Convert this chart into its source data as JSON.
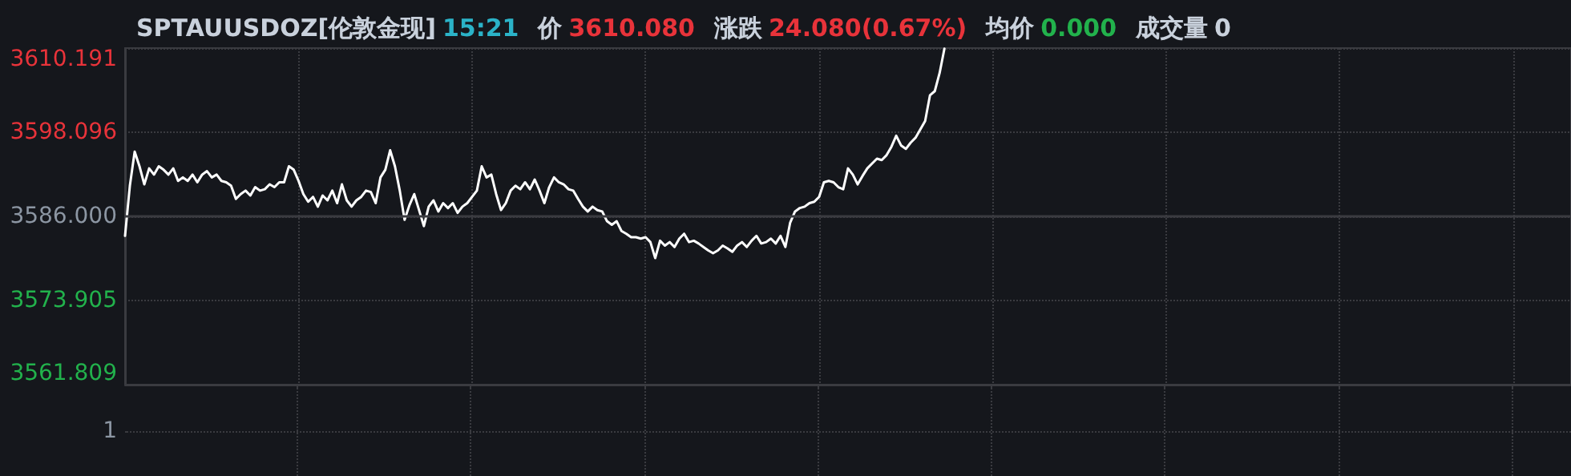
{
  "chart_data": {
    "type": "line",
    "title": "SPTAUUSDOZ[伦敦金现]",
    "annotations": [
      "15:21",
      "价",
      "3610.080",
      "涨跌",
      "24.080(0.67%)",
      "均价",
      "0.000",
      "成交量",
      "0",
      "1"
    ],
    "categories": [
      null,
      null,
      null,
      null,
      null,
      null,
      null,
      null,
      null,
      null,
      null,
      null,
      null,
      null,
      null,
      null,
      null,
      null,
      null,
      null,
      null,
      null,
      null,
      null,
      null,
      null,
      null,
      null,
      null,
      null,
      null,
      null,
      null,
      null,
      null,
      null,
      null,
      null,
      null,
      null,
      null,
      null,
      null,
      null,
      null,
      null,
      null,
      null,
      null,
      null,
      null,
      null,
      null,
      null,
      null,
      null,
      null,
      null,
      null,
      null,
      null,
      null,
      null,
      null,
      null,
      null,
      null,
      null,
      null,
      null,
      null,
      null,
      null,
      null,
      null,
      null,
      null,
      null,
      null,
      null,
      null,
      null,
      null,
      null,
      null,
      null,
      null,
      null,
      null,
      null,
      null,
      null,
      null,
      null,
      null,
      null,
      null,
      null,
      null,
      null,
      null,
      null,
      null,
      null,
      null,
      null,
      null,
      null,
      null,
      null,
      null,
      null,
      null,
      null,
      null,
      null,
      null,
      null,
      null,
      null,
      null,
      null,
      null,
      null,
      null,
      null,
      null,
      null,
      null,
      null,
      null,
      null,
      null,
      null,
      null,
      null,
      null,
      null,
      null,
      null,
      null,
      null,
      null,
      null,
      null,
      null,
      null,
      null,
      null,
      null,
      null,
      null,
      null,
      null,
      null,
      null,
      null,
      null,
      null,
      null,
      null,
      null,
      null,
      null,
      null,
      null,
      null,
      null,
      null,
      null,
      null,
      null,
      null,
      null,
      null,
      null,
      null,
      null,
      null,
      null,
      null,
      null,
      null,
      null,
      null,
      null,
      null,
      null,
      null,
      null,
      null,
      null,
      null,
      null,
      null,
      null,
      null,
      null,
      null,
      null,
      null,
      null,
      null,
      null,
      null,
      null,
      null,
      null,
      null,
      null,
      null,
      null,
      null,
      null,
      null,
      null,
      null,
      null,
      null,
      null,
      null,
      null,
      null,
      null,
      null,
      null,
      null,
      null,
      null,
      null,
      null,
      null,
      null,
      null,
      null,
      null,
      null,
      null,
      null,
      null,
      null,
      null,
      null,
      null,
      null,
      null,
      null,
      null,
      null,
      null,
      null,
      null,
      null,
      null,
      null,
      null,
      null,
      null,
      null,
      null,
      null,
      null,
      null,
      null,
      null,
      null,
      null,
      null,
      null,
      null,
      null,
      null,
      null,
      null,
      null,
      null,
      null,
      null,
      null,
      null,
      null,
      null,
      null,
      null,
      null,
      null,
      null,
      null,
      null,
      null,
      null,
      null,
      null,
      null,
      null,
      null,
      null,
      null,
      null,
      null,
      null
    ],
    "series": [
      {
        "color": "#ffffff",
        "values": [
          3583.2,
          3590.4,
          3595.3,
          3593.2,
          3590.6,
          3592.9,
          3592.0,
          3593.2,
          3592.7,
          3592.0,
          3592.9,
          3591.1,
          3591.6,
          3591.1,
          3592.0,
          3590.9,
          3592.0,
          3592.5,
          3591.6,
          3592.0,
          3591.1,
          3590.9,
          3590.4,
          3588.5,
          3589.2,
          3589.7,
          3589.0,
          3590.2,
          3589.7,
          3589.9,
          3590.6,
          3590.2,
          3590.9,
          3590.9,
          3593.2,
          3592.7,
          3591.1,
          3589.2,
          3588.1,
          3588.8,
          3587.4,
          3589.0,
          3588.3,
          3589.7,
          3587.9,
          3590.6,
          3588.3,
          3587.4,
          3588.3,
          3588.8,
          3589.7,
          3589.5,
          3587.9,
          3591.6,
          3592.7,
          3595.5,
          3593.2,
          3589.7,
          3585.5,
          3587.6,
          3589.2,
          3586.9,
          3584.6,
          3587.4,
          3588.3,
          3586.7,
          3587.9,
          3587.2,
          3587.9,
          3586.5,
          3587.4,
          3587.9,
          3588.8,
          3589.7,
          3593.2,
          3591.6,
          3592.0,
          3589.2,
          3586.9,
          3587.9,
          3589.7,
          3590.4,
          3589.9,
          3590.9,
          3589.9,
          3591.3,
          3589.7,
          3587.9,
          3590.2,
          3591.6,
          3590.9,
          3590.6,
          3589.9,
          3589.7,
          3588.5,
          3587.4,
          3586.7,
          3587.4,
          3586.9,
          3586.7,
          3585.3,
          3584.8,
          3585.3,
          3583.9,
          3583.5,
          3583.0,
          3583.0,
          3582.8,
          3583.0,
          3582.3,
          3580.0,
          3582.5,
          3581.8,
          3582.3,
          3581.6,
          3582.8,
          3583.5,
          3582.3,
          3582.5,
          3582.1,
          3581.6,
          3581.1,
          3580.7,
          3581.1,
          3581.8,
          3581.4,
          3580.9,
          3581.8,
          3582.3,
          3581.6,
          3582.5,
          3583.2,
          3582.1,
          3582.3,
          3582.8,
          3582.1,
          3583.2,
          3581.6,
          3585.1,
          3586.7,
          3587.2,
          3587.4,
          3587.9,
          3588.1,
          3588.8,
          3590.9,
          3591.1,
          3590.9,
          3590.2,
          3589.9,
          3592.9,
          3592.0,
          3590.6,
          3591.8,
          3592.9,
          3593.6,
          3594.3,
          3594.1,
          3594.8,
          3596.0,
          3597.6,
          3596.2,
          3595.7,
          3596.6,
          3597.3,
          3598.5,
          3599.7,
          3603.4,
          3604.0,
          3606.6,
          3610.1,
          null,
          null,
          null,
          null,
          null,
          null,
          null,
          null,
          null,
          null,
          null,
          null,
          null,
          null,
          null,
          null,
          null,
          null,
          null,
          null,
          null,
          null,
          null,
          null,
          null,
          null,
          null,
          null,
          null,
          null,
          null,
          null,
          null,
          null,
          null,
          null,
          null,
          null,
          null,
          null,
          null,
          null,
          null,
          null,
          null,
          null,
          null,
          null,
          null,
          null,
          null,
          null,
          null,
          null,
          null,
          null,
          null,
          null,
          null,
          null,
          null,
          null,
          null,
          null,
          null,
          null,
          null,
          null,
          null,
          null,
          null,
          null,
          null,
          null,
          null,
          null,
          null,
          null,
          null,
          null,
          null,
          null,
          null,
          null,
          null,
          null,
          null,
          null,
          null,
          null,
          null,
          null,
          null,
          null,
          null,
          null,
          null,
          null,
          null,
          null,
          null,
          null,
          null,
          null,
          null,
          null,
          null,
          null,
          null,
          null,
          null,
          null,
          null,
          null,
          null,
          null,
          null,
          null,
          null,
          null,
          null,
          null,
          null,
          null,
          null,
          null,
          null,
          null,
          null,
          null
        ]
      }
    ],
    "ylim": [
      3561.809,
      3610.191
    ],
    "yticks": [
      {
        "value": 3561.809,
        "label": "3561.809"
      },
      {
        "value": 3573.905,
        "label": "3573.905"
      },
      {
        "value": 3586,
        "label": "3586.000"
      },
      {
        "value": 3598.096,
        "label": "3598.096"
      },
      {
        "value": 3610.191,
        "label": "3610.191"
      }
    ],
    "ref_lines": [
      {
        "axis": "y",
        "value": 3586,
        "color": "#3a3b40",
        "line_style": "solid"
      }
    ],
    "grid": true,
    "marker": "none",
    "line_style": "solid"
  }
}
